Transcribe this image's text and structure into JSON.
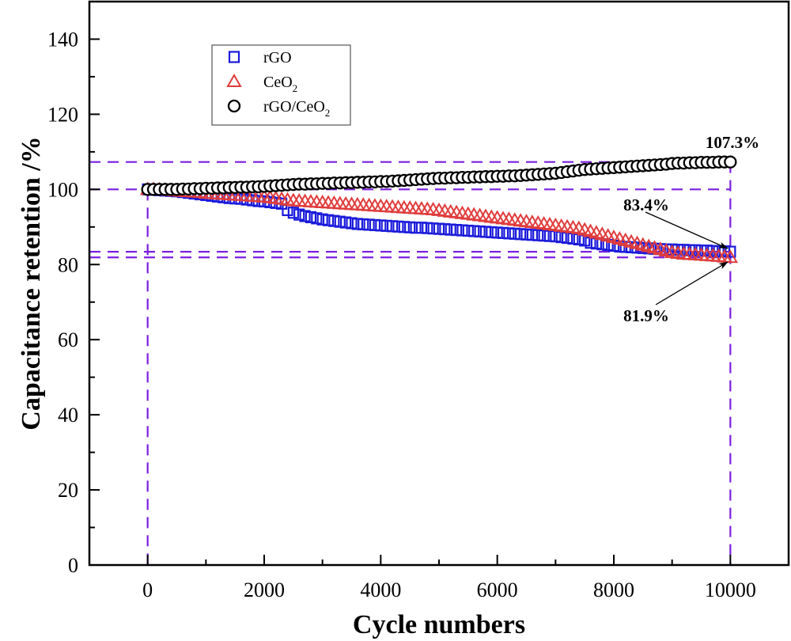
{
  "chart_data": {
    "type": "scatter",
    "title": "",
    "xlabel": "Cycle numbers",
    "ylabel": "Capacitance retention /%",
    "xlim": [
      -1000,
      11000
    ],
    "ylim": [
      0,
      150
    ],
    "xticks": [
      0,
      2000,
      4000,
      6000,
      8000,
      10000
    ],
    "xtick_labels": [
      "0",
      "2000",
      "4000",
      "6000",
      "8000",
      "10000"
    ],
    "yticks": [
      0,
      20,
      40,
      60,
      80,
      100,
      120,
      140
    ],
    "ytick_labels": [
      "0",
      "20",
      "40",
      "60",
      "80",
      "100",
      "120",
      "140"
    ],
    "grid": false,
    "legend_position": "top-left",
    "series": [
      {
        "name": "rGO",
        "label_main": "rGO",
        "label_sub": "",
        "label_tail": "",
        "marker": "square",
        "color": "#1a1adb",
        "x": [
          0,
          100,
          200,
          300,
          400,
          500,
          600,
          700,
          800,
          900,
          1000,
          1100,
          1200,
          1300,
          1400,
          1500,
          1600,
          1700,
          1800,
          1900,
          2000,
          2100,
          2200,
          2300,
          2400,
          2500,
          2600,
          2700,
          2800,
          2900,
          3000,
          3100,
          3200,
          3300,
          3400,
          3500,
          3600,
          3700,
          3800,
          3900,
          4000,
          4100,
          4200,
          4300,
          4400,
          4500,
          4600,
          4700,
          4800,
          4900,
          5000,
          5100,
          5200,
          5300,
          5400,
          5500,
          5600,
          5700,
          5800,
          5900,
          6000,
          6100,
          6200,
          6300,
          6400,
          6500,
          6600,
          6700,
          6800,
          6900,
          7000,
          7100,
          7200,
          7300,
          7400,
          7500,
          7600,
          7700,
          7800,
          7900,
          8000,
          8100,
          8200,
          8300,
          8400,
          8500,
          8600,
          8700,
          8800,
          8900,
          9000,
          9100,
          9200,
          9300,
          9400,
          9500,
          9600,
          9700,
          9800,
          9900,
          10000
        ],
        "y": [
          100,
          99.9,
          99.8,
          99.7,
          99.6,
          99.5,
          99.3,
          99.1,
          98.9,
          98.7,
          98.5,
          98.3,
          98.1,
          97.9,
          97.7,
          97.6,
          97.5,
          97.3,
          97.1,
          96.9,
          96.8,
          96.6,
          96.4,
          96.2,
          94.5,
          93.8,
          93.3,
          92.9,
          92.6,
          92.3,
          92.0,
          91.8,
          91.6,
          91.4,
          91.2,
          91.0,
          90.8,
          90.7,
          90.6,
          90.5,
          90.4,
          90.3,
          90.2,
          90.1,
          90.0,
          89.9,
          89.8,
          89.8,
          89.7,
          89.6,
          89.5,
          89.4,
          89.3,
          89.2,
          89.1,
          89.0,
          88.9,
          88.8,
          88.7,
          88.6,
          88.5,
          88.4,
          88.3,
          88.2,
          88.1,
          88.0,
          87.9,
          87.8,
          87.7,
          87.6,
          87.5,
          87.3,
          87.1,
          86.9,
          86.7,
          86.4,
          85.8,
          85.6,
          85.4,
          85.2,
          85.0,
          84.8,
          84.7,
          84.6,
          84.5,
          84.4,
          84.3,
          84.2,
          84.1,
          84.0,
          84.0,
          83.9,
          83.9,
          83.8,
          83.8,
          83.7,
          83.7,
          83.6,
          83.5,
          83.5,
          83.4
        ]
      },
      {
        "name": "CeO2",
        "label_main": "CeO",
        "label_sub": "2",
        "label_tail": "",
        "marker": "triangle",
        "color": "#e03c3c",
        "x": [
          0,
          100,
          200,
          300,
          400,
          500,
          600,
          700,
          800,
          900,
          1000,
          1100,
          1200,
          1300,
          1400,
          1500,
          1600,
          1700,
          1800,
          1900,
          2000,
          2100,
          2200,
          2300,
          2400,
          2500,
          2600,
          2700,
          2800,
          2900,
          3000,
          3100,
          3200,
          3300,
          3400,
          3500,
          3600,
          3700,
          3800,
          3900,
          4000,
          4100,
          4200,
          4300,
          4400,
          4500,
          4600,
          4700,
          4800,
          4900,
          5000,
          5100,
          5200,
          5300,
          5400,
          5500,
          5600,
          5700,
          5800,
          5900,
          6000,
          6100,
          6200,
          6300,
          6400,
          6500,
          6600,
          6700,
          6800,
          6900,
          7000,
          7100,
          7200,
          7300,
          7400,
          7500,
          7600,
          7700,
          7800,
          7900,
          8000,
          8100,
          8200,
          8300,
          8400,
          8500,
          8600,
          8700,
          8800,
          8900,
          9000,
          9100,
          9200,
          9300,
          9400,
          9500,
          9600,
          9700,
          9800,
          9900,
          10000
        ],
        "y": [
          100,
          100,
          99.9,
          99.8,
          99.7,
          99.6,
          99.5,
          99.4,
          99.3,
          99.2,
          99.0,
          98.9,
          98.8,
          98.7,
          98.6,
          98.5,
          98.4,
          98.3,
          98.2,
          98.1,
          98.0,
          97.8,
          97.6,
          97.4,
          97.2,
          97.0,
          96.9,
          96.8,
          96.7,
          96.6,
          96.5,
          96.4,
          96.3,
          96.2,
          96.1,
          96.0,
          95.9,
          95.8,
          95.7,
          95.6,
          95.5,
          95.4,
          95.3,
          95.2,
          95.1,
          95.0,
          94.9,
          94.8,
          94.7,
          94.6,
          94.4,
          94.2,
          94.0,
          93.8,
          93.6,
          93.4,
          93.2,
          93.0,
          92.8,
          92.6,
          92.4,
          92.2,
          92.0,
          91.8,
          91.6,
          91.4,
          91.2,
          91.0,
          90.8,
          90.6,
          90.4,
          90.2,
          90.0,
          89.8,
          89.6,
          89.2,
          88.8,
          88.4,
          88.0,
          87.6,
          87.2,
          86.8,
          86.4,
          86.0,
          85.6,
          85.2,
          84.8,
          84.4,
          84.0,
          83.6,
          83.2,
          83.0,
          82.8,
          82.7,
          82.6,
          82.5,
          82.4,
          82.3,
          82.2,
          82.0,
          81.9
        ]
      },
      {
        "name": "rGO/CeO2",
        "label_main": "rGO/CeO",
        "label_sub": "2",
        "label_tail": "",
        "marker": "circle",
        "color": "#000000",
        "x": [
          0,
          100,
          200,
          300,
          400,
          500,
          600,
          700,
          800,
          900,
          1000,
          1100,
          1200,
          1300,
          1400,
          1500,
          1600,
          1700,
          1800,
          1900,
          2000,
          2100,
          2200,
          2300,
          2400,
          2500,
          2600,
          2700,
          2800,
          2900,
          3000,
          3100,
          3200,
          3300,
          3400,
          3500,
          3600,
          3700,
          3800,
          3900,
          4000,
          4100,
          4200,
          4300,
          4400,
          4500,
          4600,
          4700,
          4800,
          4900,
          5000,
          5100,
          5200,
          5300,
          5400,
          5500,
          5600,
          5700,
          5800,
          5900,
          6000,
          6100,
          6200,
          6300,
          6400,
          6500,
          6600,
          6700,
          6800,
          6900,
          7000,
          7100,
          7200,
          7300,
          7400,
          7500,
          7600,
          7700,
          7800,
          7900,
          8000,
          8100,
          8200,
          8300,
          8400,
          8500,
          8600,
          8700,
          8800,
          8900,
          9000,
          9100,
          9200,
          9300,
          9400,
          9500,
          9600,
          9700,
          9800,
          9900,
          10000
        ],
        "y": [
          100,
          100,
          100,
          100,
          100,
          100,
          100.1,
          100.1,
          100.2,
          100.2,
          100.3,
          100.3,
          100.4,
          100.4,
          100.5,
          100.5,
          100.6,
          100.6,
          100.7,
          100.7,
          100.8,
          100.9,
          101.0,
          101.1,
          101.2,
          101.3,
          101.4,
          101.4,
          101.5,
          101.5,
          101.6,
          101.6,
          101.7,
          101.7,
          101.8,
          101.8,
          101.9,
          101.9,
          102.0,
          102.0,
          102.1,
          102.1,
          102.2,
          102.3,
          102.4,
          102.5,
          102.6,
          102.7,
          102.8,
          102.9,
          103.0,
          103.0,
          103.1,
          103.1,
          103.2,
          103.2,
          103.3,
          103.3,
          103.4,
          103.4,
          103.5,
          103.5,
          103.6,
          103.6,
          103.7,
          103.8,
          103.9,
          104.0,
          104.1,
          104.2,
          104.3,
          104.5,
          104.7,
          104.9,
          105.1,
          105.3,
          105.4,
          105.5,
          105.6,
          105.7,
          105.8,
          105.9,
          106.0,
          106.1,
          106.2,
          106.3,
          106.4,
          106.5,
          106.6,
          106.7,
          106.9,
          107.0,
          107.0,
          107.1,
          107.1,
          107.2,
          107.2,
          107.2,
          107.3,
          107.3,
          107.3
        ]
      }
    ],
    "reference_lines": {
      "color": "#7b1fe0",
      "horizontal": [
        107.3,
        100,
        83.4,
        81.9
      ],
      "vertical": [
        0,
        10000
      ]
    },
    "annotations": [
      {
        "text": "107.3%",
        "x": 10000,
        "y": 107.3,
        "arrow": false
      },
      {
        "text": "83.4%",
        "x": 10000,
        "y": 83.4,
        "arrow": true
      },
      {
        "text": "81.9%",
        "x": 10000,
        "y": 81.9,
        "arrow": true
      }
    ]
  }
}
